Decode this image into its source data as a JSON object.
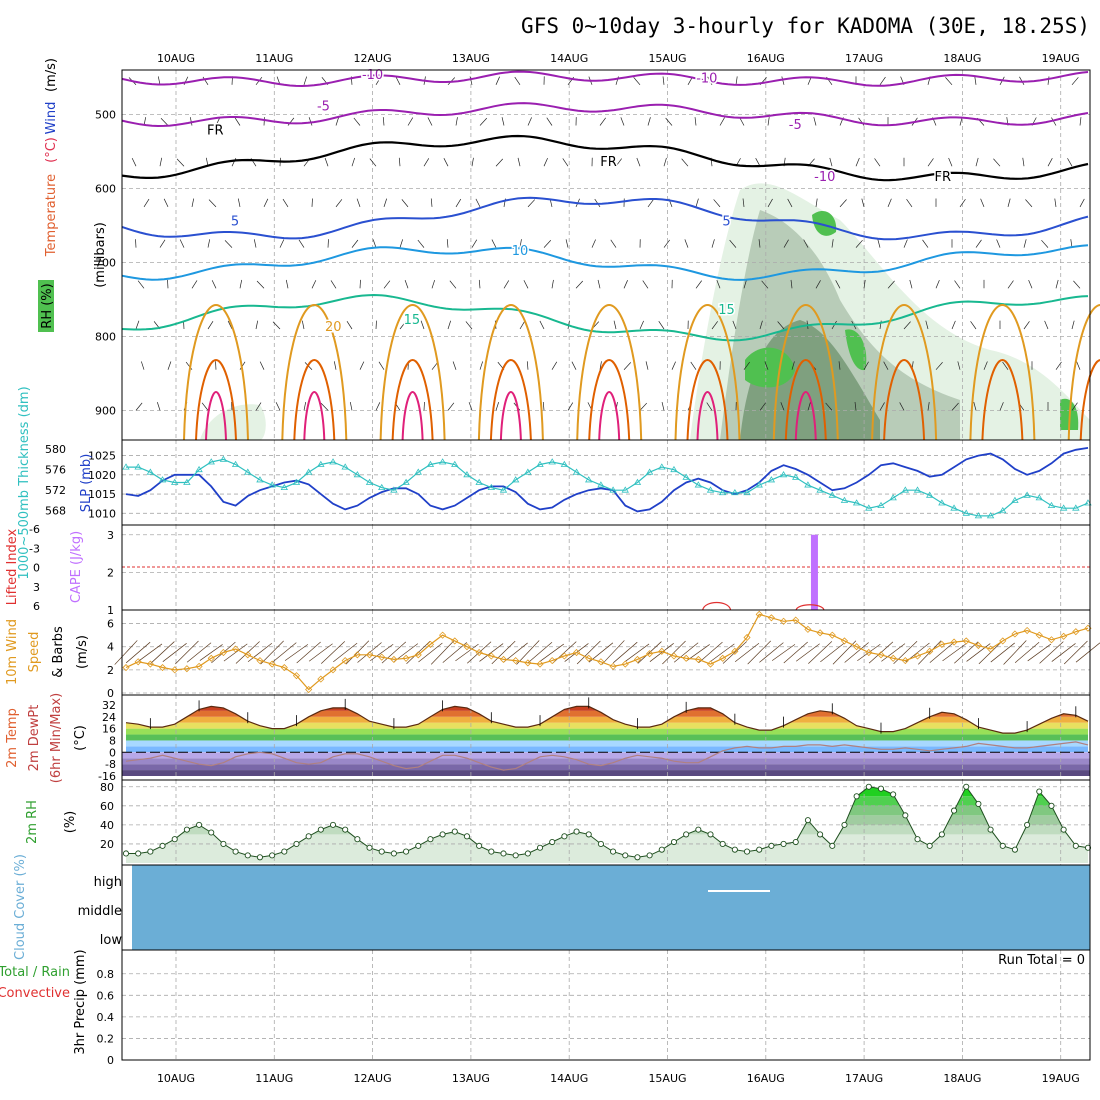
{
  "title": "GFS 0~10day 3-hourly for KADOMA (30E, 18.25S)",
  "dates": [
    "10AUG",
    "11AUG",
    "12AUG",
    "13AUG",
    "14AUG",
    "15AUG",
    "16AUG",
    "17AUG",
    "18AUG",
    "19AUG"
  ],
  "colors": {
    "purple": "#9a1fb0",
    "black": "#000000",
    "blue": "#2a50d0",
    "lightblue": "#1e98e0",
    "teal": "#18b890",
    "orange": "#e09a20",
    "darkorange": "#e06000",
    "magenta": "#e0207a",
    "rh_green": "#50c050",
    "slp": "#2040c8",
    "thick": "#30c0c0",
    "li": "#e03030",
    "cape": "#c070ff",
    "wind10": "#e09a20",
    "cloud": "#6baed6",
    "rh2m": "#30a030",
    "precip_conv": "#e03030"
  },
  "chart_data": [
    {
      "id": "profile",
      "type": "contour",
      "ylabel": "(millibars)",
      "ylabel_parts": [
        "Temperature",
        "(°C)",
        "Wind",
        "(m/s)"
      ],
      "rh_label": "RH (%)",
      "y_ticks": [
        500,
        600,
        700,
        800,
        900
      ],
      "ylim": [
        440,
        940
      ],
      "y_reversed": true,
      "contour_labels": [
        {
          "text": "-10",
          "date_idx": 2.0,
          "p": 452
        },
        {
          "text": "-10",
          "date_idx": 5.4,
          "p": 457
        },
        {
          "text": "-5",
          "date_idx": 1.5,
          "p": 495
        },
        {
          "text": "-5",
          "date_idx": 6.3,
          "p": 520
        },
        {
          "text": "FR",
          "date_idx": 0.4,
          "p": 527
        },
        {
          "text": "FR",
          "date_idx": 4.4,
          "p": 570
        },
        {
          "text": "FR",
          "date_idx": 7.8,
          "p": 590
        },
        {
          "text": "-10",
          "date_idx": 6.6,
          "p": 590
        },
        {
          "text": "5",
          "date_idx": 0.6,
          "p": 650
        },
        {
          "text": "5",
          "date_idx": 5.6,
          "p": 650
        },
        {
          "text": "10",
          "date_idx": 3.5,
          "p": 690
        },
        {
          "text": "15",
          "date_idx": 2.4,
          "p": 783
        },
        {
          "text": "15",
          "date_idx": 5.6,
          "p": 770
        },
        {
          "text": "20",
          "date_idx": 1.6,
          "p": 793
        }
      ]
    },
    {
      "id": "slp_thickness",
      "type": "line",
      "ylabel_left": "1000~500mb Thickness (dm)",
      "ylabel_right": "SLP (mb)",
      "thickness_ticks": [
        568,
        572,
        576,
        580
      ],
      "slp_ticks": [
        1010,
        1015,
        1020,
        1025
      ],
      "series": [
        {
          "name": "SLP (mb)",
          "axis": "slp",
          "values": [
            1015,
            1014.5,
            1016,
            1018.5,
            1020,
            1020,
            1020,
            1017,
            1013,
            1012,
            1014.5,
            1016,
            1017,
            1018,
            1018.5,
            1017.5,
            1015,
            1012.5,
            1011,
            1012,
            1014,
            1015.5,
            1016.5,
            1016.5,
            1015,
            1012,
            1011,
            1012,
            1014,
            1016,
            1017,
            1017,
            1015.5,
            1012.5,
            1011,
            1011.5,
            1013.5,
            1015,
            1016,
            1016.5,
            1016,
            1012,
            1010.5,
            1011,
            1013,
            1016,
            1018,
            1019,
            1018,
            1016,
            1015,
            1016,
            1018,
            1021,
            1022.5,
            1021.5,
            1020,
            1018,
            1016,
            1016.5,
            1018,
            1020,
            1022.5,
            1023,
            1022,
            1021,
            1019.5,
            1020,
            1022,
            1024,
            1025,
            1025.5,
            1024,
            1021.5,
            1020,
            1021,
            1023,
            1025.5,
            1026.5,
            1027
          ]
        },
        {
          "name": "Thickness (dm)",
          "axis": "thick",
          "values": [
            576.5,
            576.5,
            575.5,
            574,
            573.5,
            573.5,
            576,
            577.5,
            578,
            577,
            575.5,
            574,
            573,
            572.5,
            573.5,
            575.5,
            577,
            577.5,
            576.5,
            575,
            573.5,
            572.5,
            572,
            573.5,
            575.5,
            577,
            577.5,
            577,
            575,
            573.5,
            572.5,
            572,
            574,
            575.5,
            577,
            577.5,
            577,
            575.5,
            574,
            573,
            572,
            572,
            573.5,
            575.5,
            576.5,
            576,
            574.5,
            573,
            572,
            571.5,
            571.5,
            571.5,
            573,
            574,
            575,
            574.5,
            573,
            572,
            571,
            570,
            569.5,
            568.5,
            569,
            570.5,
            572,
            572,
            571,
            569.5,
            568.5,
            567.5,
            567,
            567,
            568,
            570,
            571,
            570.5,
            569,
            568.5,
            568.5,
            569.5
          ]
        }
      ]
    },
    {
      "id": "instability",
      "type": "bar",
      "ylabel_left": "Lifted Index",
      "ylabel_right": "CAPE (J/kg)",
      "li_ticks": [
        "-6",
        "-3",
        "0",
        "3",
        "6"
      ],
      "cape_ticks": [
        1,
        2,
        3
      ],
      "cape_bars": [
        {
          "date_idx": 6.5,
          "value": 3.0
        }
      ],
      "li_bumps": [
        {
          "date_idx": 5.5,
          "value": 5.0
        },
        {
          "date_idx": 6.45,
          "value": 5.3
        }
      ]
    },
    {
      "id": "wind10m",
      "type": "line",
      "ylabel": "10m Wind Speed (m/s) & Barbs",
      "y_ticks": [
        0,
        2,
        4,
        6
      ],
      "ylim": [
        0,
        7
      ],
      "series": [
        {
          "name": "10m Wind Speed",
          "values": [
            2.2,
            2.7,
            2.5,
            2.2,
            2,
            2.1,
            2.3,
            3,
            3.5,
            3.8,
            3.3,
            2.8,
            2.5,
            2.2,
            1.5,
            0.3,
            1.2,
            2,
            2.8,
            3.3,
            3.3,
            3.1,
            2.9,
            3,
            3.3,
            4.2,
            5,
            4.5,
            4,
            3.5,
            3.2,
            2.9,
            2.8,
            2.6,
            2.5,
            2.8,
            3.2,
            3.5,
            3,
            2.7,
            2.3,
            2.5,
            2.9,
            3.4,
            3.6,
            3.2,
            3,
            2.9,
            2.5,
            3,
            3.6,
            4.8,
            6.8,
            6.5,
            6.2,
            6.3,
            5.5,
            5.2,
            5,
            4.5,
            4,
            3.5,
            3.3,
            3,
            2.8,
            3.2,
            3.6,
            4.2,
            4.4,
            4.5,
            4.1,
            3.8,
            4.5,
            5.1,
            5.4,
            5,
            4.6,
            4.9,
            5.3,
            5.6
          ]
        }
      ]
    },
    {
      "id": "temp2m",
      "type": "area",
      "ylabel": "2m Temp 2m DewPt (6hr Min/Max) (°C)",
      "y_ticks": [
        -16,
        -8,
        0,
        8,
        16,
        24,
        32
      ],
      "ylim": [
        -16,
        36
      ],
      "series": [
        {
          "name": "2m Temp",
          "values": [
            20,
            19,
            17,
            17,
            19,
            24,
            29,
            31,
            30,
            26,
            21,
            18,
            16,
            16,
            19,
            24,
            28,
            30,
            30,
            26,
            21,
            19,
            17,
            17,
            19,
            24,
            29,
            31,
            30,
            26,
            21,
            19,
            17,
            17,
            19,
            24,
            29,
            31,
            31,
            27,
            22,
            19,
            17,
            17,
            19,
            24,
            28,
            30,
            30,
            26,
            20,
            17,
            15,
            15,
            18,
            22,
            26,
            28,
            27,
            23,
            18,
            16,
            14,
            14,
            16,
            20,
            24,
            27,
            26,
            22,
            17,
            15,
            13,
            13,
            15,
            19,
            23,
            26,
            25,
            21
          ]
        },
        {
          "name": "2m DewPt",
          "values": [
            -6,
            -5,
            -4,
            -2,
            -4,
            -6,
            -8,
            -9,
            -7,
            -3,
            -1,
            0,
            -1,
            -4,
            -7,
            -8,
            -7,
            -3,
            -1,
            -1,
            -3,
            -6,
            -9,
            -11,
            -10,
            -6,
            -2,
            -2,
            -4,
            -7,
            -10,
            -12,
            -11,
            -7,
            -3,
            -2,
            -3,
            -5,
            -8,
            -9,
            -7,
            -4,
            -2,
            -3,
            -4,
            -6,
            -7,
            -7,
            -3,
            1,
            3,
            4,
            3,
            3,
            4,
            4,
            5,
            5,
            4,
            5,
            4,
            3,
            2,
            2,
            3,
            2,
            1,
            2,
            3,
            4,
            6,
            5,
            4,
            3,
            3,
            4,
            5,
            6,
            7,
            5
          ]
        }
      ]
    },
    {
      "id": "rh2m",
      "type": "area",
      "ylabel": "2m RH (%)",
      "y_ticks": [
        20,
        40,
        60,
        80
      ],
      "ylim": [
        0,
        85
      ],
      "series": [
        {
          "name": "2m RH",
          "values": [
            10,
            10,
            12,
            18,
            25,
            35,
            40,
            32,
            20,
            12,
            8,
            6,
            8,
            12,
            20,
            28,
            35,
            40,
            35,
            25,
            16,
            12,
            10,
            12,
            18,
            25,
            30,
            33,
            28,
            18,
            12,
            10,
            8,
            10,
            16,
            22,
            28,
            33,
            30,
            20,
            12,
            8,
            6,
            8,
            14,
            22,
            30,
            35,
            30,
            20,
            14,
            12,
            14,
            18,
            20,
            22,
            45,
            30,
            18,
            40,
            70,
            80,
            78,
            72,
            50,
            25,
            18,
            30,
            55,
            80,
            62,
            35,
            18,
            14,
            40,
            75,
            60,
            35,
            18,
            16
          ]
        }
      ]
    },
    {
      "id": "cloud",
      "type": "area",
      "ylabel": "Cloud Cover (%)",
      "levels": [
        "high",
        "middle",
        "low"
      ],
      "cover_fraction": 1.0
    },
    {
      "id": "precip",
      "type": "bar",
      "ylabel": "3hr Precip (mm)",
      "legend_total": "Total / Rain",
      "legend_conv": "Convective",
      "y_ticks": [
        "0",
        "0.2",
        "0.4",
        "0.6",
        "0.8"
      ],
      "ylim": [
        0,
        1
      ],
      "run_total": "Run Total = 0",
      "values": []
    }
  ]
}
